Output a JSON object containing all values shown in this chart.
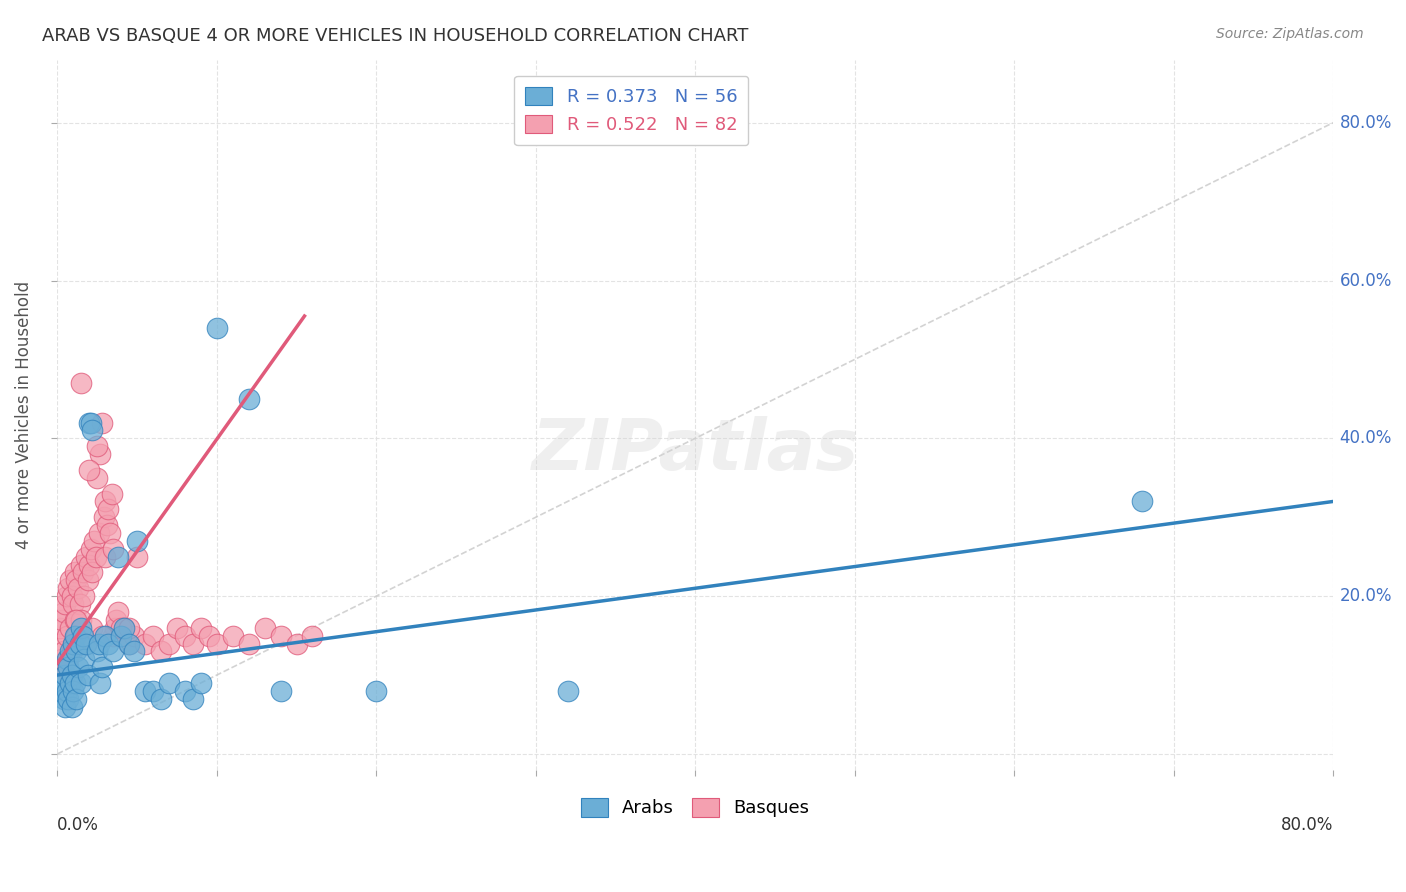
{
  "title": "ARAB VS BASQUE 4 OR MORE VEHICLES IN HOUSEHOLD CORRELATION CHART",
  "source": "Source: ZipAtlas.com",
  "ylabel": "4 or more Vehicles in Household",
  "xlim": [
    0,
    0.8
  ],
  "ylim": [
    -0.02,
    0.88
  ],
  "watermark": "ZIPatlas",
  "legend_arab_r": "R = 0.373",
  "legend_arab_n": "N = 56",
  "legend_basque_r": "R = 0.522",
  "legend_basque_n": "N = 82",
  "arab_color": "#6baed6",
  "basque_color": "#f4a0b0",
  "arab_line_color": "#3182bd",
  "basque_line_color": "#e05a7a",
  "diagonal_color": "#c8c8c8",
  "arab_points_x": [
    0.002,
    0.003,
    0.004,
    0.005,
    0.005,
    0.006,
    0.006,
    0.007,
    0.007,
    0.008,
    0.008,
    0.009,
    0.009,
    0.01,
    0.01,
    0.011,
    0.011,
    0.012,
    0.012,
    0.013,
    0.014,
    0.015,
    0.015,
    0.016,
    0.017,
    0.018,
    0.019,
    0.02,
    0.021,
    0.022,
    0.025,
    0.026,
    0.027,
    0.028,
    0.03,
    0.032,
    0.035,
    0.038,
    0.04,
    0.042,
    0.045,
    0.048,
    0.05,
    0.055,
    0.06,
    0.065,
    0.07,
    0.08,
    0.085,
    0.09,
    0.1,
    0.12,
    0.14,
    0.2,
    0.32,
    0.68
  ],
  "arab_points_y": [
    0.08,
    0.09,
    0.07,
    0.1,
    0.06,
    0.12,
    0.08,
    0.11,
    0.07,
    0.13,
    0.09,
    0.1,
    0.06,
    0.14,
    0.08,
    0.15,
    0.09,
    0.13,
    0.07,
    0.11,
    0.14,
    0.16,
    0.09,
    0.15,
    0.12,
    0.14,
    0.1,
    0.42,
    0.42,
    0.41,
    0.13,
    0.14,
    0.09,
    0.11,
    0.15,
    0.14,
    0.13,
    0.25,
    0.15,
    0.16,
    0.14,
    0.13,
    0.27,
    0.08,
    0.08,
    0.07,
    0.09,
    0.08,
    0.07,
    0.09,
    0.54,
    0.45,
    0.08,
    0.08,
    0.08,
    0.32
  ],
  "basque_points_x": [
    0.001,
    0.002,
    0.002,
    0.003,
    0.003,
    0.004,
    0.004,
    0.005,
    0.005,
    0.006,
    0.006,
    0.007,
    0.007,
    0.008,
    0.008,
    0.009,
    0.009,
    0.01,
    0.01,
    0.011,
    0.011,
    0.012,
    0.012,
    0.013,
    0.014,
    0.015,
    0.015,
    0.016,
    0.017,
    0.018,
    0.019,
    0.02,
    0.021,
    0.022,
    0.023,
    0.024,
    0.025,
    0.026,
    0.027,
    0.028,
    0.029,
    0.03,
    0.031,
    0.032,
    0.033,
    0.034,
    0.035,
    0.036,
    0.037,
    0.038,
    0.04,
    0.042,
    0.045,
    0.048,
    0.05,
    0.055,
    0.06,
    0.065,
    0.07,
    0.075,
    0.08,
    0.085,
    0.09,
    0.095,
    0.1,
    0.11,
    0.12,
    0.13,
    0.14,
    0.15,
    0.16,
    0.015,
    0.02,
    0.025,
    0.03,
    0.035,
    0.04,
    0.045,
    0.012,
    0.018,
    0.022,
    0.028
  ],
  "basque_points_y": [
    0.14,
    0.16,
    0.11,
    0.17,
    0.12,
    0.18,
    0.13,
    0.19,
    0.1,
    0.2,
    0.15,
    0.21,
    0.12,
    0.22,
    0.16,
    0.2,
    0.13,
    0.19,
    0.14,
    0.23,
    0.17,
    0.22,
    0.15,
    0.21,
    0.19,
    0.24,
    0.17,
    0.23,
    0.2,
    0.25,
    0.22,
    0.24,
    0.26,
    0.23,
    0.27,
    0.25,
    0.35,
    0.28,
    0.38,
    0.42,
    0.3,
    0.32,
    0.29,
    0.31,
    0.28,
    0.33,
    0.15,
    0.16,
    0.17,
    0.18,
    0.15,
    0.16,
    0.14,
    0.15,
    0.25,
    0.14,
    0.15,
    0.13,
    0.14,
    0.16,
    0.15,
    0.14,
    0.16,
    0.15,
    0.14,
    0.15,
    0.14,
    0.16,
    0.15,
    0.14,
    0.15,
    0.47,
    0.36,
    0.39,
    0.25,
    0.26,
    0.16,
    0.16,
    0.17,
    0.14,
    0.16,
    0.15
  ],
  "background_color": "#ffffff",
  "grid_color": "#e0e0e0",
  "arab_line_x": [
    0.0,
    0.8
  ],
  "arab_line_y": [
    0.1,
    0.32
  ],
  "basque_line_x": [
    0.0,
    0.155
  ],
  "basque_line_y": [
    0.115,
    0.555
  ]
}
